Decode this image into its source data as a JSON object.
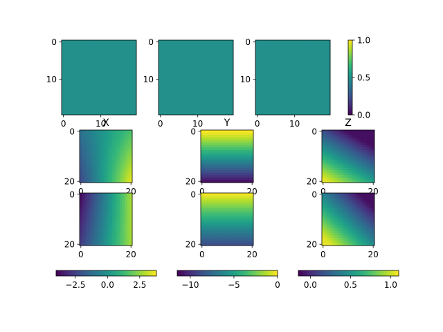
{
  "chart_data": [
    {
      "type": "heatmap",
      "id": "top-left",
      "rows": 20,
      "cols": 20,
      "field": "constant",
      "constant": 0.5,
      "vmin": 0,
      "vmax": 1,
      "colormap": "viridis",
      "xticks": [
        0,
        10
      ],
      "yticks": [
        0,
        10
      ],
      "title": ""
    },
    {
      "type": "heatmap",
      "id": "top-middle",
      "rows": 20,
      "cols": 20,
      "field": "constant",
      "constant": 0.5,
      "vmin": 0,
      "vmax": 1,
      "colormap": "viridis",
      "xticks": [
        0,
        10
      ],
      "yticks": [
        0,
        10
      ],
      "title": ""
    },
    {
      "type": "heatmap",
      "id": "top-right",
      "rows": 20,
      "cols": 20,
      "field": "constant",
      "constant": 0.5,
      "vmin": 0,
      "vmax": 1,
      "colormap": "viridis",
      "xticks": [
        0,
        10
      ],
      "yticks": [
        0,
        10
      ],
      "title": ""
    },
    {
      "type": "heatmap",
      "id": "x-upper",
      "title": "X",
      "rows": 21,
      "cols": 21,
      "field": "x_upper",
      "vmin": -4,
      "vmax": 3.8,
      "colormap": "viridis",
      "xticks": [
        0,
        20
      ],
      "yticks": [
        0,
        20
      ]
    },
    {
      "type": "heatmap",
      "id": "y-upper",
      "title": "Y",
      "rows": 21,
      "cols": 21,
      "field": "y_upper",
      "vmin": -11.5,
      "vmax": 0,
      "colormap": "viridis",
      "xticks": [
        0,
        20
      ],
      "yticks": [
        0,
        20
      ]
    },
    {
      "type": "heatmap",
      "id": "z-upper",
      "title": "Z",
      "rows": 21,
      "cols": 21,
      "field": "z_upper",
      "vmin": -0.15,
      "vmax": 1.1,
      "colormap": "viridis",
      "xticks": [
        0,
        20
      ],
      "yticks": [
        0,
        20
      ]
    },
    {
      "type": "heatmap",
      "id": "x-lower",
      "title": "",
      "rows": 21,
      "cols": 21,
      "field": "x_lower",
      "vmin": -4,
      "vmax": 3.8,
      "colormap": "viridis",
      "xticks": [
        0,
        20
      ],
      "yticks": [
        0,
        20
      ]
    },
    {
      "type": "heatmap",
      "id": "y-lower",
      "title": "",
      "rows": 21,
      "cols": 21,
      "field": "y_lower",
      "vmin": -11.5,
      "vmax": 0,
      "colormap": "viridis",
      "xticks": [
        0,
        20
      ],
      "yticks": [
        0,
        20
      ]
    },
    {
      "type": "heatmap",
      "id": "z-lower",
      "title": "",
      "rows": 21,
      "cols": 21,
      "field": "z_lower",
      "vmin": -0.15,
      "vmax": 1.1,
      "colormap": "viridis",
      "xticks": [
        0,
        20
      ],
      "yticks": [
        0,
        20
      ]
    }
  ],
  "colorbars": [
    {
      "id": "colorbar-top",
      "orientation": "vertical",
      "vmin": 0,
      "vmax": 1,
      "ticks": [
        0,
        0.5,
        1
      ],
      "tick_labels": [
        "0.0",
        "0.5",
        "1.0"
      ]
    },
    {
      "id": "colorbar-x",
      "orientation": "horizontal",
      "vmin": -4,
      "vmax": 3.8,
      "ticks": [
        -2.5,
        0,
        2.5
      ],
      "tick_labels": [
        "−2.5",
        "0.0",
        "2.5"
      ]
    },
    {
      "id": "colorbar-y",
      "orientation": "horizontal",
      "vmin": -11.5,
      "vmax": 0,
      "ticks": [
        -10,
        -5,
        0
      ],
      "tick_labels": [
        "−10",
        "−5",
        "0"
      ]
    },
    {
      "id": "colorbar-z",
      "orientation": "horizontal",
      "vmin": -0.15,
      "vmax": 1.1,
      "ticks": [
        0,
        0.5,
        1
      ],
      "tick_labels": [
        "0.0",
        "0.5",
        "1.0"
      ]
    }
  ]
}
